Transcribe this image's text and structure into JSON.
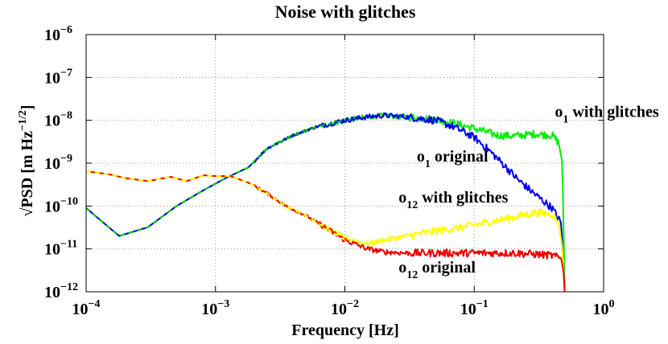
{
  "chart_data": {
    "type": "line",
    "title": "Noise with glitches",
    "xlabel": "Frequency  [Hz]",
    "ylabel": "√PSD  [m Hz",
    "ylabel_sup": "−1/2",
    "ylabel_end": "]",
    "x_scale": "log",
    "y_scale": "log",
    "xlim": [
      0.0001,
      1
    ],
    "ylim": [
      1e-12,
      1e-06
    ],
    "grid": true,
    "x_ticks": [
      {
        "base": "10",
        "exp": "−4",
        "value": 0.0001
      },
      {
        "base": "10",
        "exp": "−3",
        "value": 0.001
      },
      {
        "base": "10",
        "exp": "−2",
        "value": 0.01
      },
      {
        "base": "10",
        "exp": "−1",
        "value": 0.1
      },
      {
        "base": "10",
        "exp": "0",
        "value": 1
      }
    ],
    "y_ticks": [
      {
        "base": "10",
        "exp": "−12",
        "value": 1e-12
      },
      {
        "base": "10",
        "exp": "−11",
        "value": 1e-11
      },
      {
        "base": "10",
        "exp": "−10",
        "value": 1e-10
      },
      {
        "base": "10",
        "exp": "−9",
        "value": 1e-09
      },
      {
        "base": "10",
        "exp": "−8",
        "value": 1e-08
      },
      {
        "base": "10",
        "exp": "−7",
        "value": 1e-07
      },
      {
        "base": "10",
        "exp": "−6",
        "value": 1e-06
      }
    ],
    "series": [
      {
        "key": "o1_glitch",
        "color": "#00ee00",
        "dash": false,
        "x": [
          0.0001,
          0.00018,
          0.0003,
          0.0005,
          0.0008,
          0.0012,
          0.0018,
          0.0025,
          0.004,
          0.006,
          0.01,
          0.015,
          0.02,
          0.03,
          0.05,
          0.07,
          0.1,
          0.15,
          0.2,
          0.3,
          0.4,
          0.45,
          0.48,
          0.5
        ],
        "y": [
          9e-11,
          2e-11,
          3.2e-11,
          1e-10,
          2.3e-10,
          4.5e-10,
          8e-10,
          2.2e-09,
          4.5e-09,
          7e-09,
          1e-08,
          1.2e-08,
          1.3e-08,
          1.2e-08,
          1.05e-08,
          8.5e-09,
          6.5e-09,
          4.5e-09,
          4.3e-09,
          4.8e-09,
          4.5e-09,
          3e-09,
          1e-09,
          1e-12
        ]
      },
      {
        "key": "o1_orig",
        "color": "#0000ee",
        "dash": false,
        "x": [
          0.0001,
          0.00018,
          0.0003,
          0.0005,
          0.0008,
          0.0012,
          0.0018,
          0.0025,
          0.004,
          0.006,
          0.01,
          0.015,
          0.02,
          0.03,
          0.05,
          0.07,
          0.1,
          0.13,
          0.17,
          0.22,
          0.3,
          0.4,
          0.47,
          0.5
        ],
        "y": [
          9e-11,
          2e-11,
          3.2e-11,
          1e-10,
          2.3e-10,
          4.5e-10,
          8e-10,
          2.2e-09,
          4.5e-09,
          7e-09,
          1e-08,
          1.2e-08,
          1.3e-08,
          1.2e-08,
          1e-08,
          7e-09,
          4e-09,
          2e-09,
          9e-10,
          4e-10,
          1.8e-10,
          9e-11,
          4e-11,
          1e-12
        ]
      },
      {
        "key": "o1_dash",
        "color": "#00cc00",
        "dash": true,
        "x": [
          0.0001,
          0.00018,
          0.0003,
          0.0005,
          0.0008,
          0.0012,
          0.0018,
          0.0025,
          0.004,
          0.006,
          0.01
        ],
        "y": [
          9e-11,
          2e-11,
          3.2e-11,
          1e-10,
          2.3e-10,
          4.5e-10,
          8e-10,
          2.2e-09,
          4.5e-09,
          7e-09,
          1e-08
        ]
      },
      {
        "key": "o12_glitch",
        "color": "#ffff00",
        "dash": false,
        "x": [
          0.0001,
          0.00015,
          0.0002,
          0.0003,
          0.00045,
          0.0006,
          0.0008,
          0.001,
          0.0013,
          0.0018,
          0.0025,
          0.0035,
          0.005,
          0.007,
          0.01,
          0.015,
          0.02,
          0.03,
          0.05,
          0.08,
          0.12,
          0.2,
          0.3,
          0.4,
          0.45,
          0.48,
          0.5
        ],
        "y": [
          6.5e-10,
          5.5e-10,
          4.5e-10,
          3.8e-10,
          4.8e-10,
          3.8e-10,
          5.2e-10,
          5e-10,
          5e-10,
          3.5e-10,
          2e-10,
          1e-10,
          6e-11,
          3.2e-11,
          1.8e-11,
          1.3e-11,
          1.6e-11,
          2e-11,
          2.6e-11,
          3.2e-11,
          4e-11,
          5.5e-11,
          7e-11,
          6.5e-11,
          4e-11,
          1e-11,
          1e-12
        ]
      },
      {
        "key": "o12_orig",
        "color": "#ee0000",
        "dash": false,
        "x": [
          0.0001,
          0.00015,
          0.0002,
          0.0003,
          0.00045,
          0.0006,
          0.0008,
          0.001,
          0.0013,
          0.0018,
          0.0025,
          0.0035,
          0.005,
          0.007,
          0.01,
          0.015,
          0.02,
          0.03,
          0.05,
          0.1,
          0.2,
          0.3,
          0.4,
          0.47,
          0.49,
          0.5
        ],
        "y": [
          6.5e-10,
          5.5e-10,
          4.5e-10,
          3.8e-10,
          4.8e-10,
          3.8e-10,
          5.2e-10,
          5e-10,
          5e-10,
          3.5e-10,
          2e-10,
          1e-10,
          6e-11,
          3.2e-11,
          1.6e-11,
          1e-11,
          8.5e-12,
          8e-12,
          8e-12,
          8e-12,
          8e-12,
          7.5e-12,
          7e-12,
          6e-12,
          3e-12,
          1e-12
        ]
      },
      {
        "key": "o12_dash",
        "color": "#ffff00",
        "dash": true,
        "x": [
          0.0001,
          0.00015,
          0.0002,
          0.0003,
          0.00045,
          0.0006,
          0.0008,
          0.001,
          0.0013,
          0.0018,
          0.0025,
          0.0035,
          0.005,
          0.007,
          0.01
        ],
        "y": [
          6.5e-10,
          5.5e-10,
          4.5e-10,
          3.8e-10,
          4.8e-10,
          3.8e-10,
          5.2e-10,
          5e-10,
          5e-10,
          3.5e-10,
          2e-10,
          1e-10,
          6e-11,
          3.2e-11,
          1.6e-11
        ]
      }
    ],
    "annotations": [
      {
        "key": "o1_glitch",
        "base": "o",
        "sub": "1",
        "rest": " with glitches",
        "x": 0.42,
        "y": 1.2e-08
      },
      {
        "key": "o1_orig",
        "base": "o",
        "sub": "1",
        "rest": " original",
        "x": 0.036,
        "y": 1.1e-09
      },
      {
        "key": "o12_glitch",
        "base": "o",
        "sub": "12",
        "rest": " with glitches",
        "x": 0.026,
        "y": 1.2e-10
      },
      {
        "key": "o12_orig",
        "base": "o",
        "sub": "12",
        "rest": " original",
        "x": 0.026,
        "y": 2.8e-12
      }
    ]
  }
}
